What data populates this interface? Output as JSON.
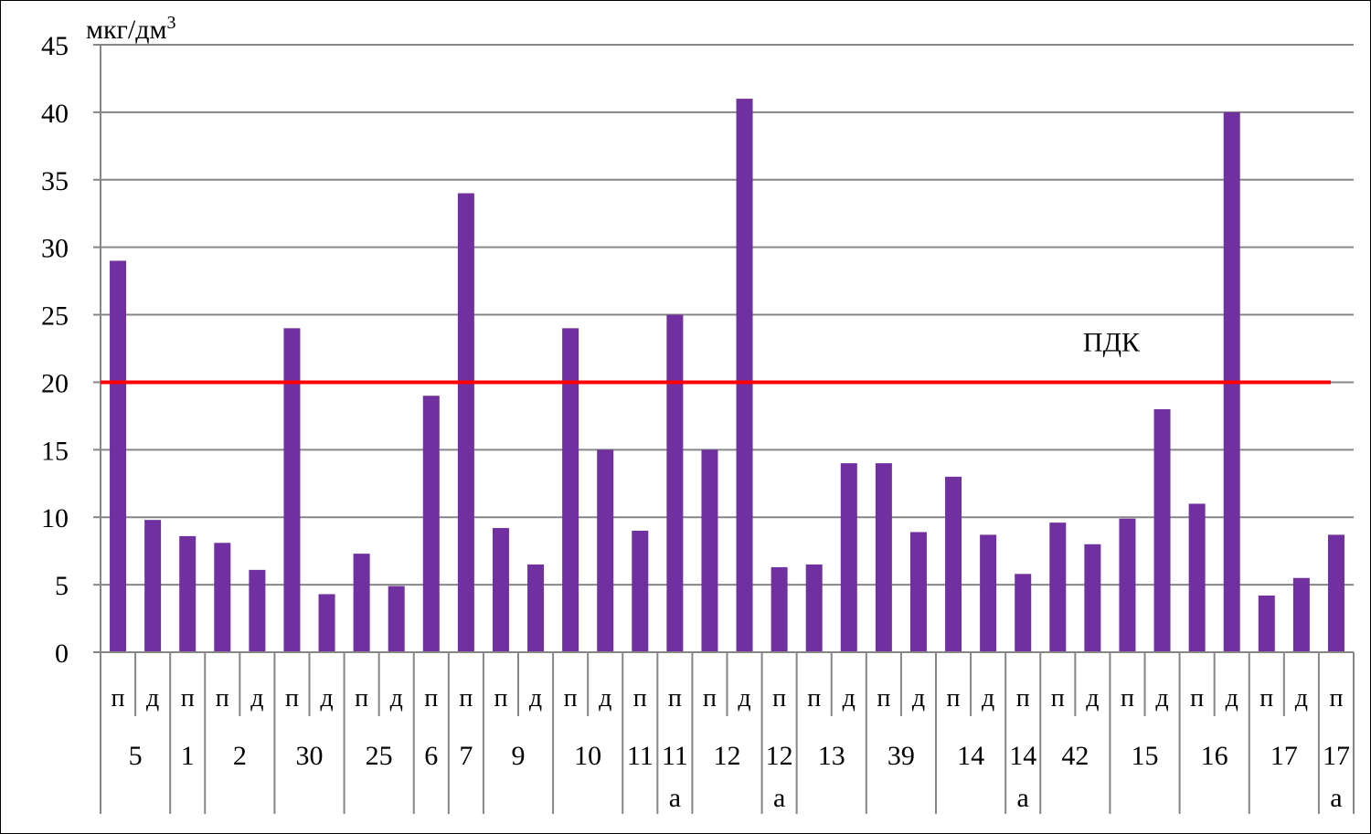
{
  "chart_data": {
    "type": "bar",
    "unit_label": "мкг/дм",
    "unit_superscript": "3",
    "ylim": [
      0,
      45
    ],
    "yticks": [
      0,
      5,
      10,
      15,
      20,
      25,
      30,
      35,
      40,
      45
    ],
    "grid": true,
    "bar_color": "#7030a0",
    "reference_line": {
      "label": "ПДК",
      "value": 20,
      "color": "#ff0000"
    },
    "bars": [
      {
        "sub": "п",
        "value": 29
      },
      {
        "sub": "д",
        "value": 9.8
      },
      {
        "sub": "п",
        "value": 8.6
      },
      {
        "sub": "п",
        "value": 8.1
      },
      {
        "sub": "д",
        "value": 6.1
      },
      {
        "sub": "п",
        "value": 24
      },
      {
        "sub": "д",
        "value": 4.3
      },
      {
        "sub": "п",
        "value": 7.3
      },
      {
        "sub": "д",
        "value": 4.9
      },
      {
        "sub": "п",
        "value": 19
      },
      {
        "sub": "п",
        "value": 34
      },
      {
        "sub": "п",
        "value": 9.2
      },
      {
        "sub": "д",
        "value": 6.5
      },
      {
        "sub": "п",
        "value": 24
      },
      {
        "sub": "д",
        "value": 15
      },
      {
        "sub": "п",
        "value": 9
      },
      {
        "sub": "п",
        "value": 25
      },
      {
        "sub": "п",
        "value": 15
      },
      {
        "sub": "д",
        "value": 41
      },
      {
        "sub": "п",
        "value": 6.3
      },
      {
        "sub": "п",
        "value": 6.5
      },
      {
        "sub": "д",
        "value": 14
      },
      {
        "sub": "п",
        "value": 14
      },
      {
        "sub": "д",
        "value": 8.9
      },
      {
        "sub": "п",
        "value": 13
      },
      {
        "sub": "д",
        "value": 8.7
      },
      {
        "sub": "п",
        "value": 5.8
      },
      {
        "sub": "п",
        "value": 9.6
      },
      {
        "sub": "д",
        "value": 8
      },
      {
        "sub": "п",
        "value": 9.9
      },
      {
        "sub": "д",
        "value": 18
      },
      {
        "sub": "п",
        "value": 11
      },
      {
        "sub": "д",
        "value": 40
      },
      {
        "sub": "п",
        "value": 4.2
      },
      {
        "sub": "д",
        "value": 5.5
      },
      {
        "sub": "п",
        "value": 8.7
      }
    ],
    "groups": [
      {
        "lines": [
          "5"
        ],
        "count": 2
      },
      {
        "lines": [
          "1"
        ],
        "count": 1
      },
      {
        "lines": [
          "2"
        ],
        "count": 2
      },
      {
        "lines": [
          "30"
        ],
        "count": 2
      },
      {
        "lines": [
          "25"
        ],
        "count": 2
      },
      {
        "lines": [
          "6"
        ],
        "count": 1
      },
      {
        "lines": [
          "7"
        ],
        "count": 1
      },
      {
        "lines": [
          "9"
        ],
        "count": 2
      },
      {
        "lines": [
          "10"
        ],
        "count": 2
      },
      {
        "lines": [
          "11"
        ],
        "count": 1
      },
      {
        "lines": [
          "11",
          "а"
        ],
        "count": 1
      },
      {
        "lines": [
          "12"
        ],
        "count": 2
      },
      {
        "lines": [
          "12",
          "а"
        ],
        "count": 1
      },
      {
        "lines": [
          "13"
        ],
        "count": 2
      },
      {
        "lines": [
          "39"
        ],
        "count": 2
      },
      {
        "lines": [
          "14"
        ],
        "count": 2
      },
      {
        "lines": [
          "14",
          "а"
        ],
        "count": 1
      },
      {
        "lines": [
          "42"
        ],
        "count": 2
      },
      {
        "lines": [
          "15"
        ],
        "count": 2
      },
      {
        "lines": [
          "16"
        ],
        "count": 2
      },
      {
        "lines": [
          "17"
        ],
        "count": 2
      },
      {
        "lines": [
          "17",
          "а"
        ],
        "count": 1
      }
    ]
  }
}
